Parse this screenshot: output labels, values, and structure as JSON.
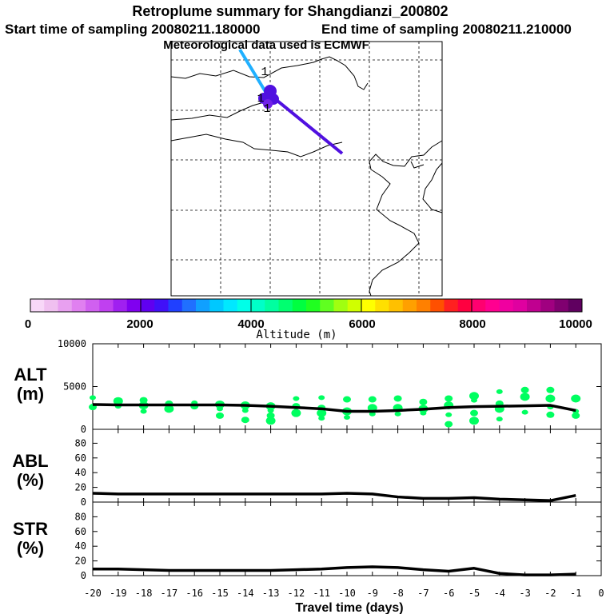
{
  "title": "Retroplume summary for Shangdianzi_200802",
  "subtitle_start": "Start time of sampling 20080211.180000",
  "subtitle_end": "End time of sampling 20080211.210000",
  "subtitle_met": "Meteorological data used is ECMWF",
  "map": {
    "markers": [
      "1",
      "1",
      "1"
    ]
  },
  "colorbar": {
    "title": "Altitude (m)",
    "ticks": [
      "0",
      "2000",
      "4000",
      "6000",
      "8000",
      "10000"
    ],
    "colors": [
      "#f8d8f8",
      "#f0c0f0",
      "#e8a0f0",
      "#e080f0",
      "#d060f0",
      "#c040f0",
      "#a020f0",
      "#8000f0",
      "#6000f0",
      "#4010f8",
      "#2040ff",
      "#2070ff",
      "#10a0ff",
      "#00c8ff",
      "#00e8ff",
      "#00ffe8",
      "#00ffc8",
      "#00ffa0",
      "#00ff70",
      "#00ff40",
      "#20ff20",
      "#60ff20",
      "#a0ff10",
      "#d0ff00",
      "#ffff00",
      "#ffe000",
      "#ffc000",
      "#ffa000",
      "#ff8000",
      "#ff5000",
      "#ff2020",
      "#ff0040",
      "#ff0070",
      "#ff0090",
      "#f000a0",
      "#e000a0",
      "#c00090",
      "#a00080",
      "#800070",
      "#600060"
    ]
  },
  "chart_data": [
    {
      "type": "line",
      "name": "ALT",
      "label_top": "ALT",
      "label_bottom": "(m)",
      "ylim": [
        0,
        10000
      ],
      "yticks": [
        "0",
        "5000",
        "10000"
      ],
      "x": [
        -20,
        -19,
        -18,
        -17,
        -16,
        -15,
        -14,
        -13,
        -12,
        -11,
        -10,
        -9,
        -8,
        -7,
        -6,
        -5,
        -4,
        -3,
        -2,
        -1
      ],
      "values": [
        2900,
        2850,
        2850,
        2850,
        2850,
        2850,
        2800,
        2700,
        2550,
        2400,
        2100,
        2100,
        2200,
        2350,
        2550,
        2650,
        2700,
        2750,
        2800,
        2200
      ],
      "scatter": [
        [
          -20,
          3700
        ],
        [
          -20,
          2600
        ],
        [
          -19,
          3300
        ],
        [
          -19,
          2700
        ],
        [
          -18,
          3400
        ],
        [
          -18,
          2800
        ],
        [
          -18,
          2100
        ],
        [
          -17,
          3000
        ],
        [
          -17,
          2400
        ],
        [
          -16,
          3100
        ],
        [
          -16,
          2700
        ],
        [
          -15,
          2900
        ],
        [
          -15,
          2400
        ],
        [
          -15,
          1600
        ],
        [
          -14,
          2800
        ],
        [
          -14,
          2200
        ],
        [
          -14,
          1100
        ],
        [
          -13,
          2700
        ],
        [
          -13,
          2200
        ],
        [
          -13,
          1600
        ],
        [
          -13,
          1000
        ],
        [
          -12,
          3600
        ],
        [
          -12,
          2700
        ],
        [
          -12,
          1900
        ],
        [
          -11,
          3700
        ],
        [
          -11,
          2500
        ],
        [
          -11,
          1900
        ],
        [
          -11,
          1300
        ],
        [
          -10,
          3500
        ],
        [
          -10,
          2100
        ],
        [
          -10,
          1400
        ],
        [
          -9,
          3500
        ],
        [
          -9,
          2500
        ],
        [
          -9,
          1800
        ],
        [
          -8,
          3600
        ],
        [
          -8,
          2500
        ],
        [
          -8,
          1800
        ],
        [
          -7,
          3200
        ],
        [
          -7,
          2400
        ],
        [
          -7,
          1900
        ],
        [
          -6,
          3600
        ],
        [
          -6,
          2800
        ],
        [
          -6,
          1700
        ],
        [
          -6,
          600
        ],
        [
          -5,
          3900
        ],
        [
          -5,
          3400
        ],
        [
          -5,
          1900
        ],
        [
          -5,
          1000
        ],
        [
          -4,
          4400
        ],
        [
          -4,
          3000
        ],
        [
          -4,
          2400
        ],
        [
          -4,
          1200
        ],
        [
          -3,
          4600
        ],
        [
          -3,
          3800
        ],
        [
          -3,
          2000
        ],
        [
          -2,
          4600
        ],
        [
          -2,
          3600
        ],
        [
          -2,
          2600
        ],
        [
          -2,
          1700
        ],
        [
          -1,
          3600
        ],
        [
          -1,
          2100
        ],
        [
          -1,
          1600
        ]
      ]
    },
    {
      "type": "line",
      "name": "ABL",
      "label_top": "ABL",
      "label_bottom": "(%)",
      "ylim": [
        0,
        100
      ],
      "yticks": [
        "0",
        "20",
        "40",
        "60",
        "80"
      ],
      "x": [
        -20,
        -19,
        -18,
        -17,
        -16,
        -15,
        -14,
        -13,
        -12,
        -11,
        -10,
        -9,
        -8,
        -7,
        -6,
        -5,
        -4,
        -3,
        -2,
        -1
      ],
      "values": [
        12,
        11,
        11,
        11,
        11,
        11,
        11,
        11,
        11,
        11,
        12,
        11,
        7,
        5,
        5,
        6,
        4,
        3,
        2,
        9
      ]
    },
    {
      "type": "line",
      "name": "STR",
      "label_top": "STR",
      "label_bottom": "(%)",
      "ylim": [
        0,
        100
      ],
      "yticks": [
        "0",
        "20",
        "40",
        "60",
        "80"
      ],
      "x": [
        -20,
        -19,
        -18,
        -17,
        -16,
        -15,
        -14,
        -13,
        -12,
        -11,
        -10,
        -9,
        -8,
        -7,
        -6,
        -5,
        -4,
        -3,
        -2,
        -1
      ],
      "values": [
        9,
        9,
        8,
        7,
        7,
        7,
        7,
        7,
        8,
        9,
        11,
        12,
        11,
        8,
        6,
        10,
        3,
        1,
        1,
        2
      ]
    }
  ],
  "x_axis": {
    "ticks": [
      "-20",
      "-19",
      "-18",
      "-17",
      "-16",
      "-15",
      "-14",
      "-13",
      "-12",
      "-11",
      "-10",
      "-9",
      "-8",
      "-7",
      "-6",
      "-5",
      "-4",
      "-3",
      "-2",
      "-1",
      "0"
    ],
    "xlabel": "Travel time (days)"
  },
  "colors": {
    "plume_light": "#20b0ff",
    "plume_dark": "#5010e0",
    "scatter": "#00ff60",
    "line": "#000000"
  }
}
